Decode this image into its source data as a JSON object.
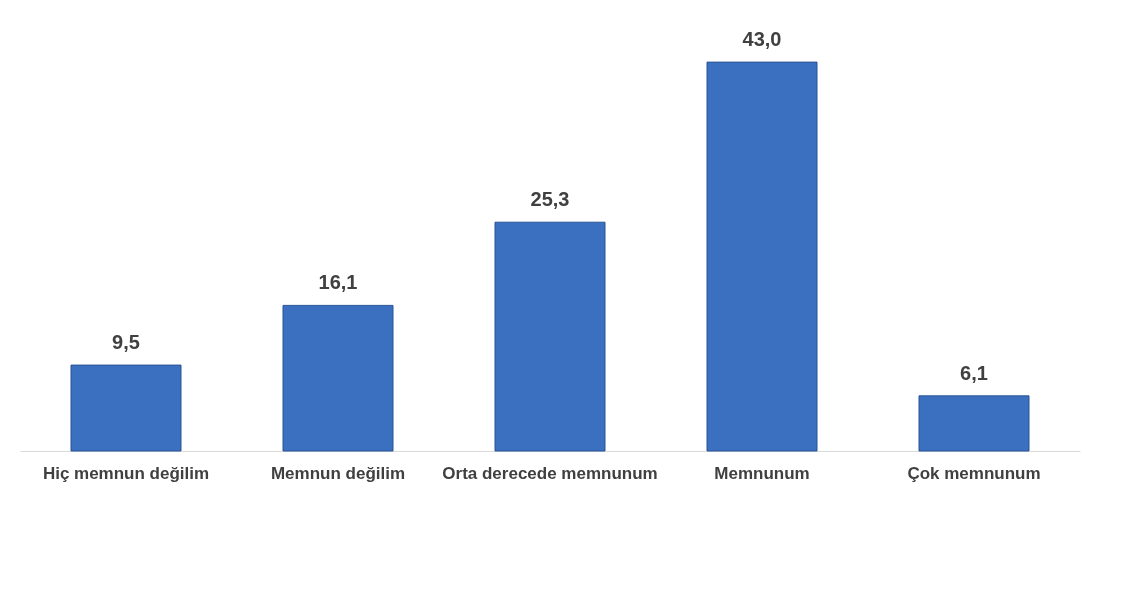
{
  "chart_data": {
    "type": "bar",
    "categories": [
      "Hiç memnun değilim",
      "Memnun değilim",
      "Orta derecede memnunum",
      "Memnunum",
      "Çok memnunum"
    ],
    "values": [
      9.5,
      16.1,
      25.3,
      43.0,
      6.1
    ],
    "value_labels": [
      "9,5",
      "16,1",
      "25,3",
      "43,0",
      "6,1"
    ],
    "color": "#3b6fbf",
    "grid": false
  }
}
